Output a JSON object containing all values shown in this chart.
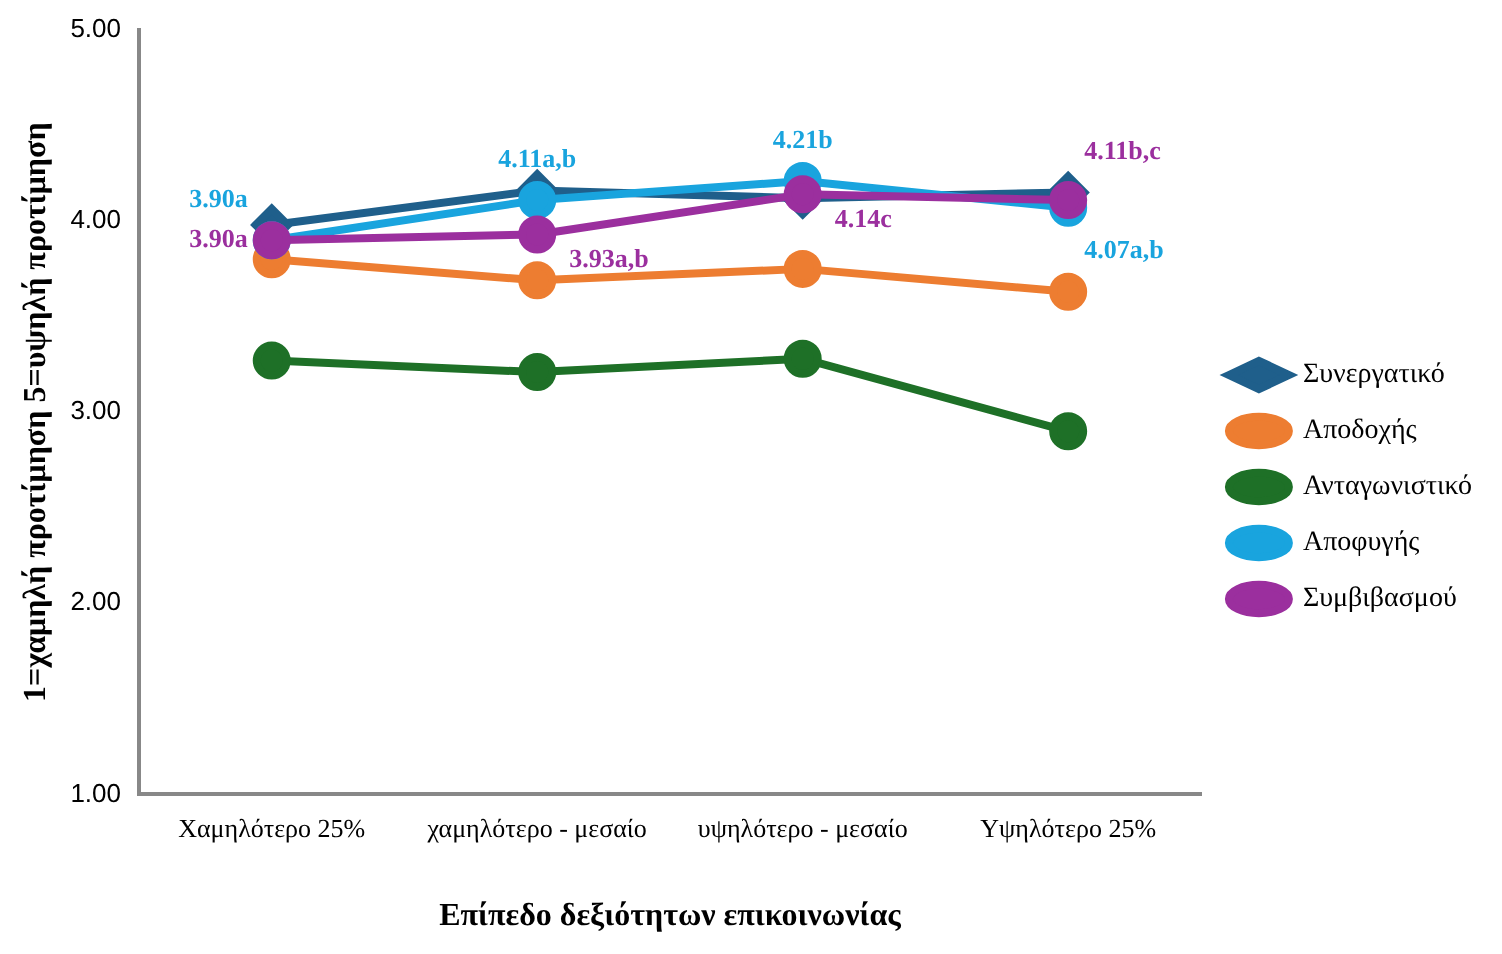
{
  "chart_data": {
    "type": "line",
    "xlabel": "Επίπεδο δεξιότητων επικοινωνίας",
    "ylabel": "1=χαμηλή προτίμηση 5=υψηλή προτίμηση",
    "categories": [
      "Χαμηλότερο 25%",
      "χαμηλότερο - μεσαίο",
      "υψηλότερο - μεσαίο",
      "Υψηλότερο 25%"
    ],
    "series": [
      {
        "name": "Συνεργατικό",
        "color": "#1f5f8b",
        "marker": "diamond",
        "values": [
          3.98,
          4.16,
          4.12,
          4.15
        ]
      },
      {
        "name": "Αποδοχής",
        "color": "#ed7d31",
        "marker": "circle",
        "values": [
          3.8,
          3.69,
          3.75,
          3.63
        ]
      },
      {
        "name": "Ανταγωνιστικό",
        "color": "#1e7027",
        "marker": "circle",
        "values": [
          3.27,
          3.21,
          3.28,
          2.9
        ]
      },
      {
        "name": "Αποφυγής",
        "color": "#19a4de",
        "marker": "circle",
        "values": [
          3.9,
          4.11,
          4.21,
          4.07
        ],
        "value_labels": [
          "3.90a",
          "4.11a,b",
          "4.21b",
          "4.07a,b"
        ]
      },
      {
        "name": "Συμβιβασμού",
        "color": "#9b2f9e",
        "marker": "circle",
        "values": [
          3.9,
          3.93,
          4.14,
          4.11
        ],
        "value_labels": [
          "3.90a",
          "3.93a,b",
          "4.14c",
          "4.11b,c"
        ]
      }
    ],
    "ylim": [
      1,
      5
    ],
    "yticks": [
      {
        "value": 1,
        "label": "1.00"
      },
      {
        "value": 2,
        "label": "2.00"
      },
      {
        "value": 3,
        "label": "3.00"
      },
      {
        "value": 4,
        "label": "4.00"
      },
      {
        "value": 5,
        "label": "5.00"
      }
    ],
    "grid": false,
    "legend": "right",
    "line_style": "solid"
  }
}
